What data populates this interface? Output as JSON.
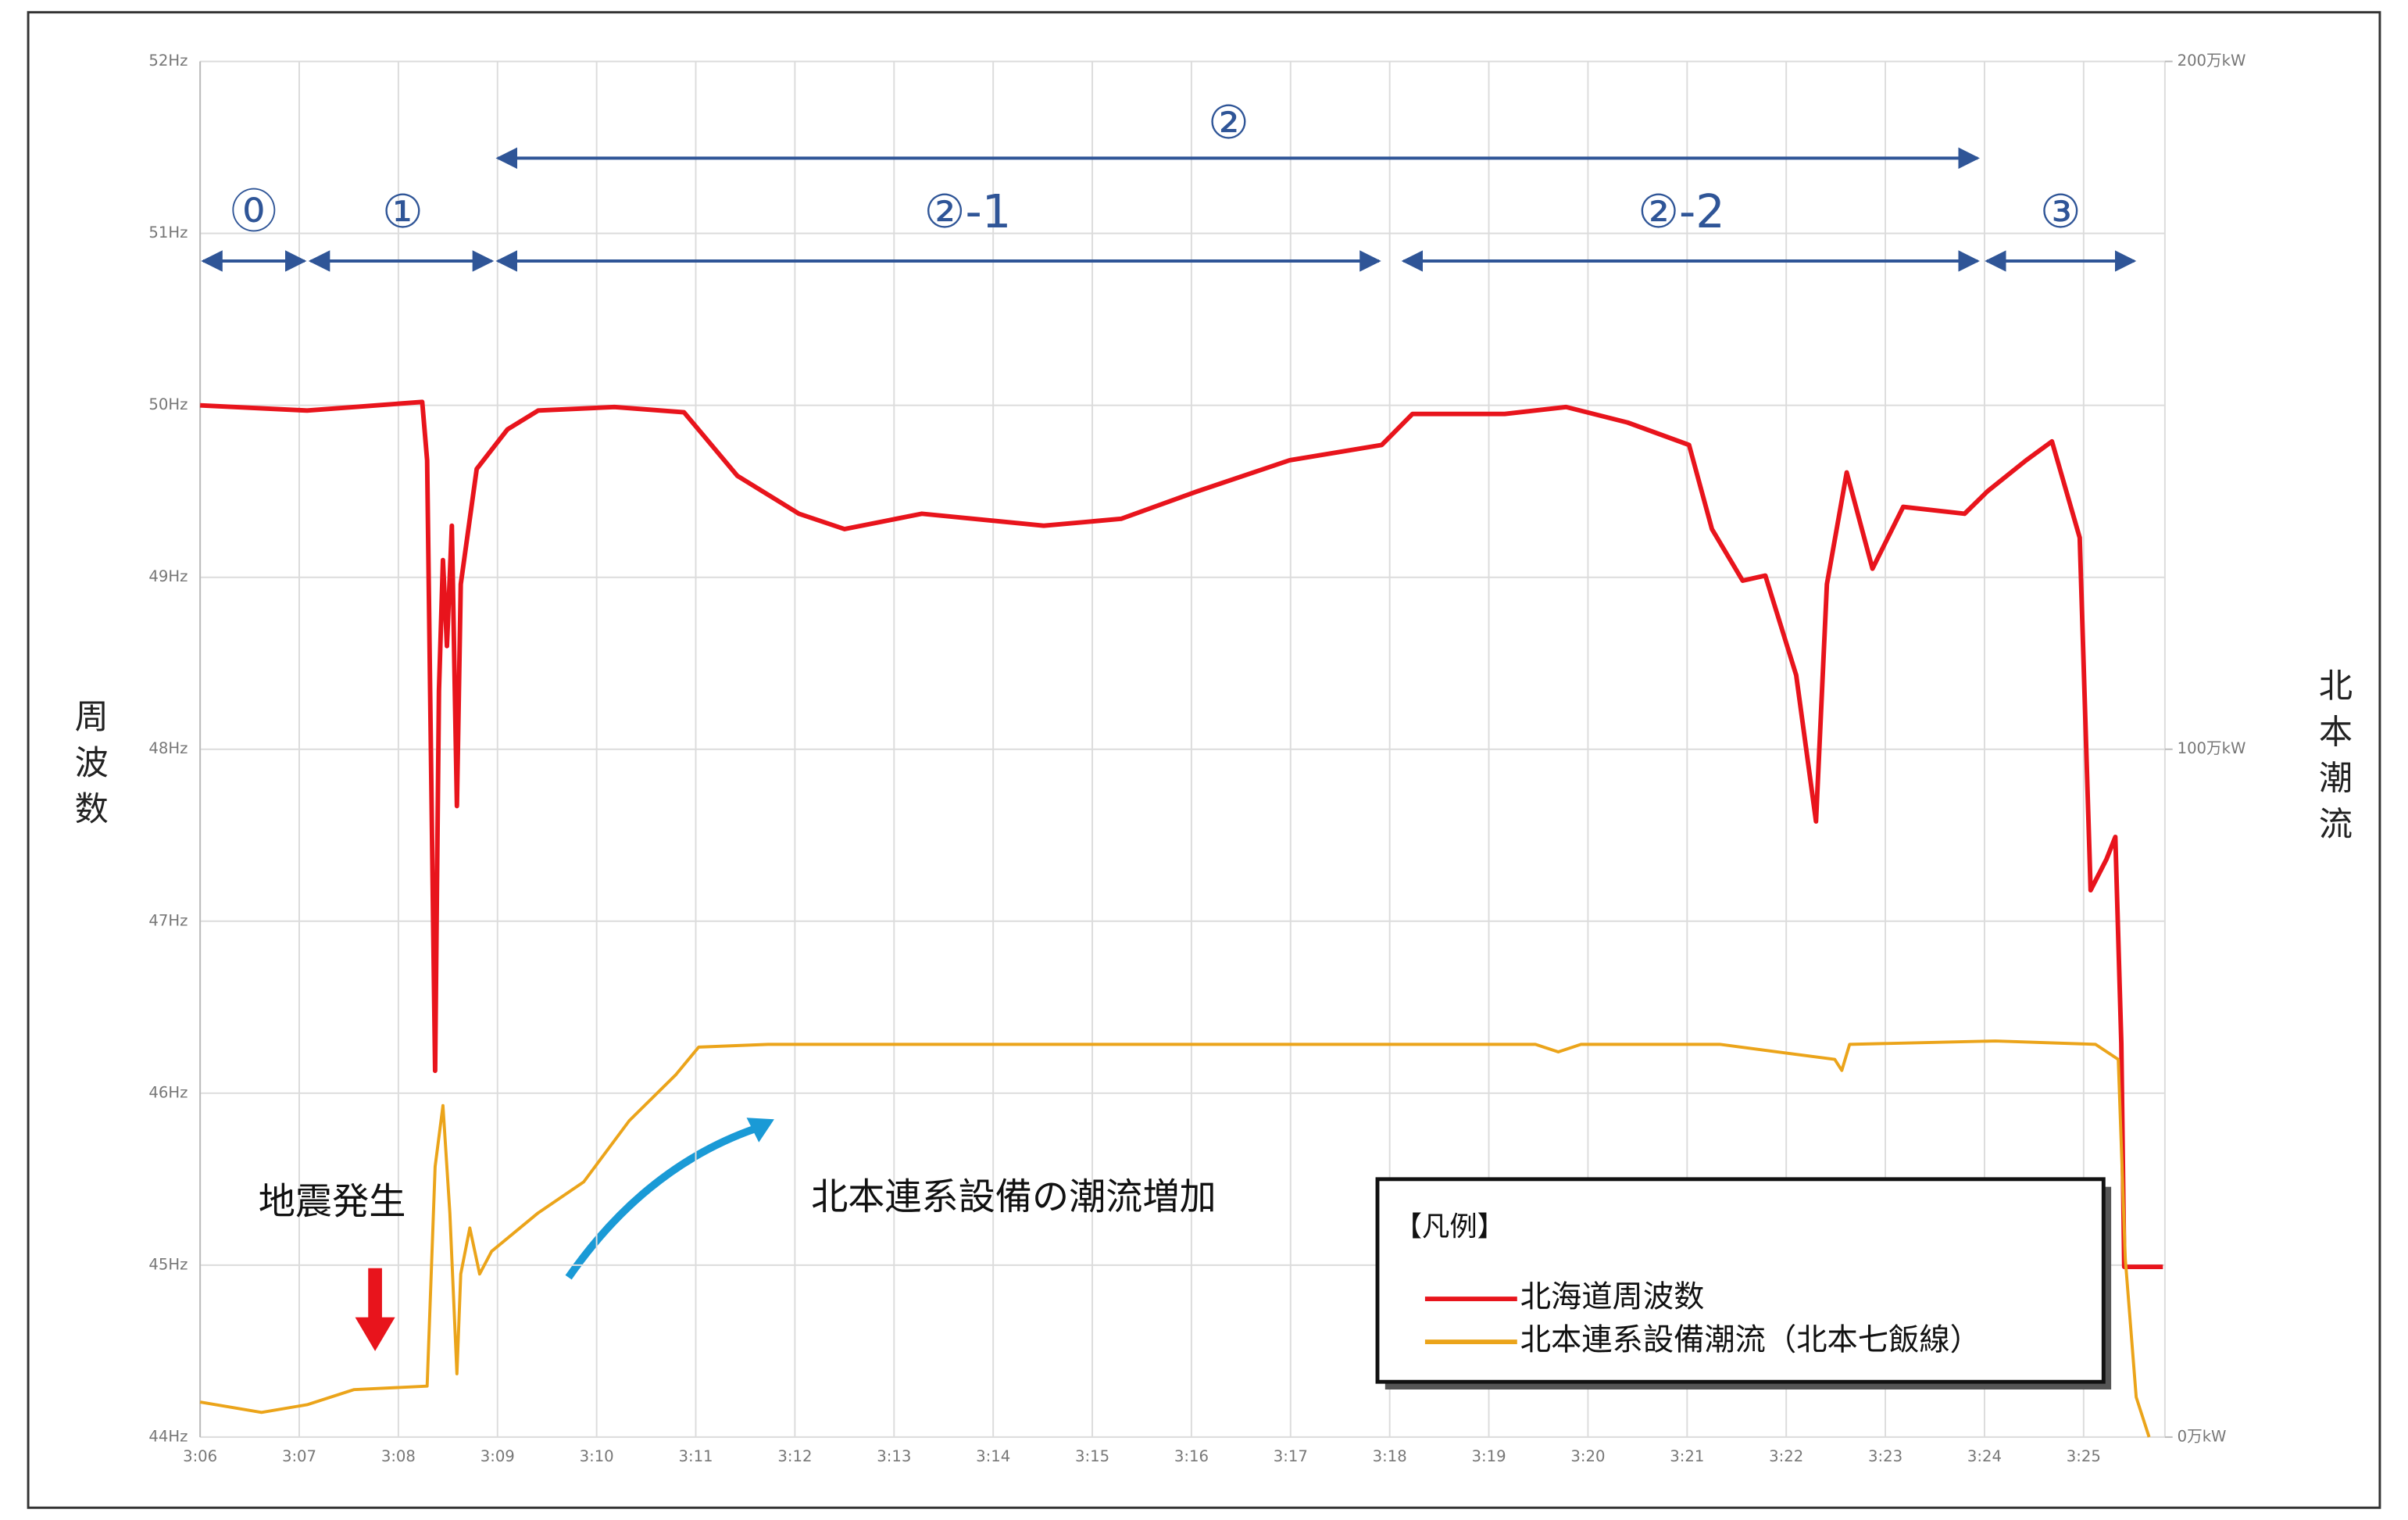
{
  "chart_data": {
    "type": "line",
    "y_label": "周波数",
    "y2_label": "北本潮流",
    "xlim": [
      6,
      25.82
    ],
    "xticks": [
      {
        "value": 6,
        "label": "3:06"
      },
      {
        "value": 7,
        "label": "3:07"
      },
      {
        "value": 8,
        "label": "3:08"
      },
      {
        "value": 9,
        "label": "3:09"
      },
      {
        "value": 10,
        "label": "3:10"
      },
      {
        "value": 11,
        "label": "3:11"
      },
      {
        "value": 12,
        "label": "3:12"
      },
      {
        "value": 13,
        "label": "3:13"
      },
      {
        "value": 14,
        "label": "3:14"
      },
      {
        "value": 15,
        "label": "3:15"
      },
      {
        "value": 16,
        "label": "3:16"
      },
      {
        "value": 17,
        "label": "3:17"
      },
      {
        "value": 18,
        "label": "3:18"
      },
      {
        "value": 19,
        "label": "3:19"
      },
      {
        "value": 20,
        "label": "3:20"
      },
      {
        "value": 21,
        "label": "3:21"
      },
      {
        "value": 22,
        "label": "3:22"
      },
      {
        "value": 23,
        "label": "3:23"
      },
      {
        "value": 24,
        "label": "3:24"
      },
      {
        "value": 25,
        "label": "3:25"
      }
    ],
    "ylim": [
      44,
      52
    ],
    "yticks": [
      {
        "value": 44,
        "label": "44Hz"
      },
      {
        "value": 45,
        "label": "45Hz"
      },
      {
        "value": 46,
        "label": "46Hz"
      },
      {
        "value": 47,
        "label": "47Hz"
      },
      {
        "value": 48,
        "label": "48Hz"
      },
      {
        "value": 49,
        "label": "49Hz"
      },
      {
        "value": 50,
        "label": "50Hz"
      },
      {
        "value": 51,
        "label": "51Hz"
      },
      {
        "value": 52,
        "label": "52Hz"
      }
    ],
    "y2lim": [
      0,
      200
    ],
    "y2ticks": [
      {
        "value": 0,
        "label": "0万kW"
      },
      {
        "value": 100,
        "label": "100万kW"
      },
      {
        "value": 200,
        "label": "200万kW"
      }
    ],
    "grid": true,
    "legend_title": "【凡例】",
    "series": [
      {
        "name": "北海道周波数",
        "color": "#e8141c",
        "x": [
          6.0,
          7.08,
          8.24,
          8.29,
          8.35,
          8.37,
          8.41,
          8.45,
          8.49,
          8.54,
          8.59,
          8.63,
          8.79,
          9.1,
          9.41,
          10.18,
          10.88,
          11.42,
          12.04,
          12.5,
          13.28,
          14.51,
          15.29,
          16.06,
          16.99,
          17.92,
          18.23,
          19.16,
          19.78,
          20.4,
          21.02,
          21.25,
          21.56,
          21.79,
          22.1,
          22.3,
          22.41,
          22.61,
          22.87,
          23.18,
          23.8,
          24.03,
          24.42,
          24.68,
          24.96,
          25.07,
          25.23,
          25.32,
          25.38,
          25.41,
          25.8
        ],
        "values": [
          50.0,
          49.97,
          50.02,
          49.68,
          47.0,
          46.13,
          48.34,
          49.1,
          48.6,
          49.3,
          47.67,
          48.96,
          49.63,
          49.86,
          49.97,
          49.99,
          49.96,
          49.59,
          49.37,
          49.28,
          49.37,
          49.3,
          49.34,
          49.5,
          49.68,
          49.77,
          49.95,
          49.95,
          49.99,
          49.9,
          49.77,
          49.28,
          48.98,
          49.01,
          48.43,
          47.58,
          48.96,
          49.61,
          49.05,
          49.41,
          49.37,
          49.5,
          49.68,
          49.79,
          49.23,
          47.18,
          47.36,
          47.49,
          46.29,
          44.99,
          44.99
        ]
      },
      {
        "name": "北本連系設備潮流（北本七飯線）",
        "color": "#eba41a",
        "axis": "y2",
        "x": [
          6.0,
          6.62,
          7.08,
          7.55,
          8.29,
          8.37,
          8.45,
          8.52,
          8.59,
          8.63,
          8.72,
          8.82,
          8.94,
          9.41,
          9.87,
          10.33,
          10.8,
          11.03,
          11.73,
          19.47,
          19.7,
          19.93,
          21.33,
          22.49,
          22.56,
          22.64,
          24.11,
          25.12,
          25.35,
          25.42,
          25.53,
          25.66
        ],
        "values": [
          5.1,
          3.6,
          4.7,
          6.9,
          7.4,
          39.3,
          48.2,
          32.6,
          9.2,
          23.7,
          30.4,
          23.7,
          27,
          32.6,
          37.1,
          46,
          52.7,
          56.7,
          57.1,
          57.1,
          56,
          57.1,
          57.1,
          54.9,
          53.3,
          57.1,
          57.6,
          57.1,
          54.9,
          25.9,
          5.8,
          0
        ]
      }
    ],
    "phases": [
      "⓪",
      "①",
      "②",
      "②-1",
      "②-2",
      "③"
    ],
    "annotations": [
      "地震発生",
      "北本連系設備の潮流増加"
    ]
  }
}
